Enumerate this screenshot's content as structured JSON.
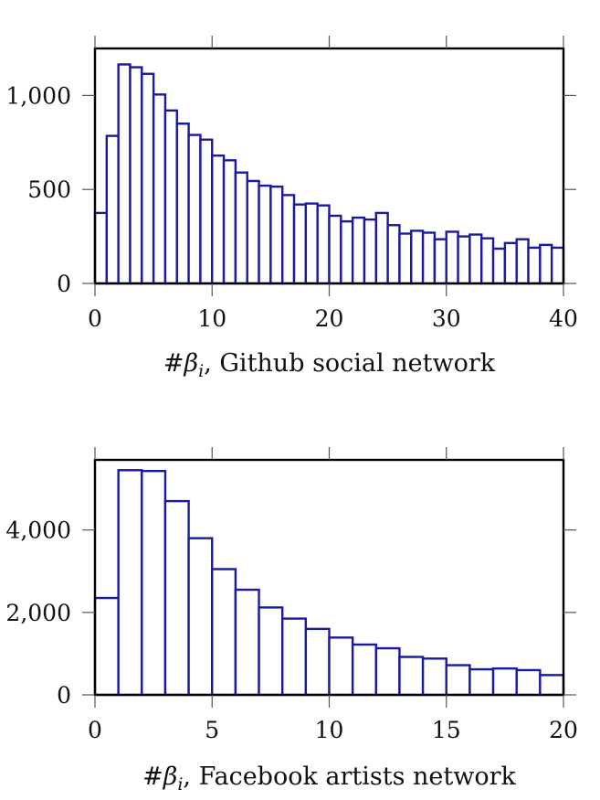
{
  "chart_data": [
    {
      "type": "bar",
      "xlabel_parts": [
        "#",
        "β",
        "i",
        ", Github social network"
      ],
      "xlim": [
        0,
        40
      ],
      "ylim": [
        0,
        1250
      ],
      "xticks": [
        0,
        10,
        20,
        30,
        40
      ],
      "xtick_labels": [
        "0",
        "10",
        "20",
        "30",
        "40"
      ],
      "yticks": [
        0,
        500,
        1000
      ],
      "ytick_labels": [
        "0",
        "500",
        "1,000"
      ],
      "bin_width": 1,
      "bin_start": 0,
      "values": [
        375,
        785,
        1165,
        1150,
        1115,
        1005,
        920,
        850,
        790,
        765,
        680,
        655,
        590,
        545,
        520,
        515,
        470,
        420,
        425,
        415,
        360,
        330,
        350,
        340,
        375,
        310,
        265,
        280,
        270,
        235,
        275,
        250,
        260,
        240,
        185,
        215,
        235,
        190,
        205,
        190
      ]
    },
    {
      "type": "bar",
      "xlabel_parts": [
        "#",
        "β",
        "i",
        ", Facebook artists network"
      ],
      "xlim": [
        0,
        20
      ],
      "ylim": [
        0,
        5700
      ],
      "xticks": [
        0,
        5,
        10,
        15,
        20
      ],
      "xtick_labels": [
        "0",
        "5",
        "10",
        "15",
        "20"
      ],
      "yticks": [
        0,
        2000,
        4000
      ],
      "ytick_labels": [
        "0",
        "2,000",
        "4,000"
      ],
      "bin_width": 1,
      "bin_start": 0,
      "values": [
        2350,
        5450,
        5430,
        4700,
        3800,
        3050,
        2550,
        2120,
        1850,
        1600,
        1390,
        1220,
        1130,
        920,
        880,
        720,
        620,
        640,
        600,
        480
      ]
    }
  ]
}
